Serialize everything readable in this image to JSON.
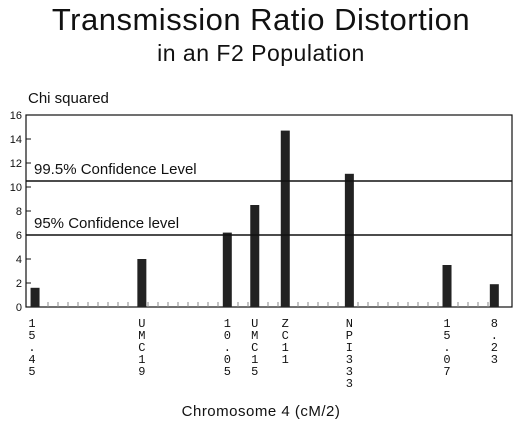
{
  "chart_data": {
    "type": "bar",
    "title": "Transmission Ratio Distortion",
    "subtitle": "in an F2 Population",
    "ylabel": "Chi squared",
    "xlabel": "Chromosome 4 (cM/2)",
    "ylim": [
      0,
      16
    ],
    "yticks": [
      0,
      2,
      4,
      6,
      8,
      10,
      12,
      14,
      16
    ],
    "x_range": [
      0,
      31
    ],
    "bars": [
      {
        "x": 0.2,
        "value": 1.6
      },
      {
        "x": 7.2,
        "value": 4.0
      },
      {
        "x": 12.8,
        "value": 6.2
      },
      {
        "x": 14.6,
        "value": 8.5
      },
      {
        "x": 16.6,
        "value": 14.7
      },
      {
        "x": 20.8,
        "value": 11.1
      },
      {
        "x": 27.2,
        "value": 3.5
      },
      {
        "x": 30.3,
        "value": 1.9
      }
    ],
    "x_markers": [
      {
        "x": 0.0,
        "label": "15.45"
      },
      {
        "x": 7.2,
        "label": "UMC19"
      },
      {
        "x": 12.8,
        "label": "10.05"
      },
      {
        "x": 14.6,
        "label": "UMC15"
      },
      {
        "x": 16.6,
        "label": "ZC11"
      },
      {
        "x": 20.8,
        "label": "NPI333"
      },
      {
        "x": 27.2,
        "label": "15.07"
      },
      {
        "x": 30.3,
        "label": "8.23"
      }
    ],
    "reference_lines": [
      {
        "value": 10.5,
        "label": "99.5% Confidence Level"
      },
      {
        "value": 6.0,
        "label": "95% Confidence level"
      }
    ],
    "colors": {
      "bars": "#222222",
      "axes": "#111111",
      "minor_ticks": "#888888"
    }
  }
}
